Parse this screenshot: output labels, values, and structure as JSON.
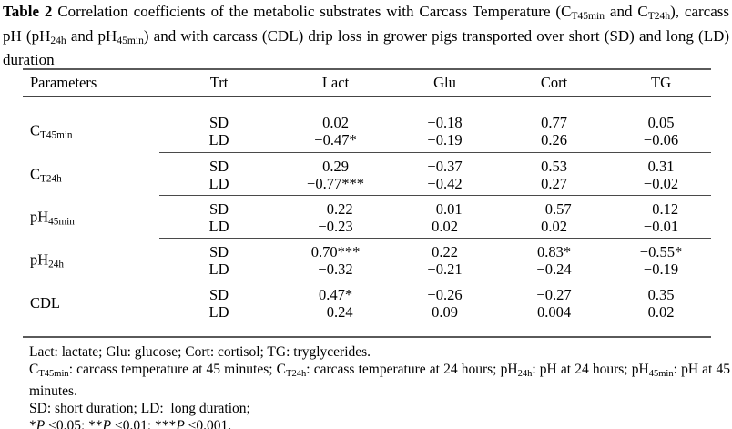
{
  "caption": {
    "runs": [
      {
        "t": "Table 2 ",
        "st": "b"
      },
      {
        "t": "Correlation coefficients of the metabolic substrates with Carcass Temperature (C"
      },
      {
        "t": "T45min",
        "st": "sub"
      },
      {
        "t": " and C"
      },
      {
        "t": "T24h",
        "st": "sub"
      },
      {
        "t": "), carcass pH (pH"
      },
      {
        "t": "24h",
        "st": "sub"
      },
      {
        "t": " and pH"
      },
      {
        "t": "45min",
        "st": "sub"
      },
      {
        "t": ") and with carcass (CDL) drip loss in grower pigs transported over short (SD) and long (LD) duration"
      }
    ]
  },
  "table": {
    "headers": [
      "Parameters",
      "Trt",
      "Lact",
      "Glu",
      "Cort",
      "TG"
    ],
    "groups": [
      {
        "label_runs": [
          {
            "t": "C"
          },
          {
            "t": "T45min",
            "st": "sub"
          }
        ],
        "rows": [
          {
            "trt": "SD",
            "values": [
              "0.02",
              "−0.18",
              "0.77",
              "0.05"
            ]
          },
          {
            "trt": "LD",
            "values": [
              "−0.47*",
              "−0.19",
              "0.26",
              "−0.06"
            ]
          }
        ]
      },
      {
        "label_runs": [
          {
            "t": "C"
          },
          {
            "t": "T24h",
            "st": "sub"
          }
        ],
        "rows": [
          {
            "trt": "SD",
            "values": [
              "0.29",
              "−0.37",
              "0.53",
              "0.31"
            ]
          },
          {
            "trt": "LD",
            "values": [
              "−0.77***",
              "−0.42",
              "0.27",
              "−0.02"
            ]
          }
        ]
      },
      {
        "label_runs": [
          {
            "t": "pH"
          },
          {
            "t": "45min",
            "st": "sub"
          }
        ],
        "rows": [
          {
            "trt": "SD",
            "values": [
              "−0.22",
              "−0.01",
              "−0.57",
              "−0.12"
            ]
          },
          {
            "trt": "LD",
            "values": [
              "−0.23",
              "0.02",
              "0.02",
              "−0.01"
            ]
          }
        ]
      },
      {
        "label_runs": [
          {
            "t": "pH"
          },
          {
            "t": "24h",
            "st": "sub"
          }
        ],
        "rows": [
          {
            "trt": "SD",
            "values": [
              "0.70***",
              "0.22",
              "0.83*",
              "−0.55*"
            ]
          },
          {
            "trt": "LD",
            "values": [
              "−0.32",
              "−0.21",
              "−0.24",
              "−0.19"
            ]
          }
        ]
      },
      {
        "label_runs": [
          {
            "t": "CDL"
          }
        ],
        "rows": [
          {
            "trt": "SD",
            "values": [
              "0.47*",
              "−0.26",
              "−0.27",
              "0.35"
            ]
          },
          {
            "trt": "LD",
            "values": [
              "−0.24",
              "0.09",
              "0.004",
              "0.02"
            ]
          }
        ]
      }
    ]
  },
  "footnotes": {
    "line1": "Lact: lactate; Glu: glucose; Cort: cortisol; TG: tryglycerides.",
    "line2_runs": [
      {
        "t": "C"
      },
      {
        "t": "T45min",
        "st": "sub"
      },
      {
        "t": ": carcass temperature at 45 minutes; C"
      },
      {
        "t": "T24h",
        "st": "sub"
      },
      {
        "t": ": carcass temperature at 24 hours; pH"
      },
      {
        "t": "24h",
        "st": "sub"
      },
      {
        "t": ": pH at 24 hours; pH"
      },
      {
        "t": "45min",
        "st": "sub"
      },
      {
        "t": ": pH at 45 minutes."
      }
    ],
    "line3": "SD: short duration; LD:  long duration;",
    "line4_runs": [
      {
        "t": "*"
      },
      {
        "t": "P",
        "st": "i"
      },
      {
        "t": " <0.05; **"
      },
      {
        "t": "P",
        "st": "i"
      },
      {
        "t": " <0.01; ***"
      },
      {
        "t": "P",
        "st": "i"
      },
      {
        "t": " <0.001."
      }
    ]
  }
}
